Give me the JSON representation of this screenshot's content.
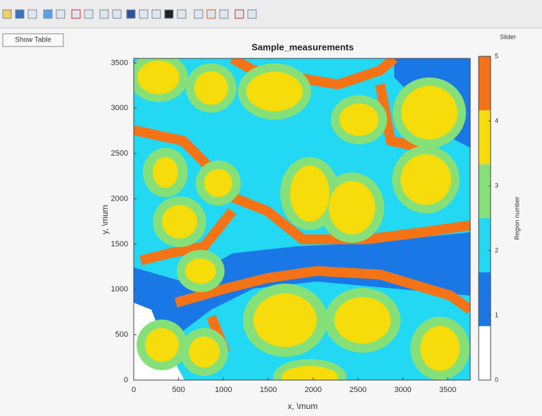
{
  "button": "Show Table",
  "slider_label": "Slider",
  "chart_data": {
    "type": "heatmap",
    "title": "Sample_measurements",
    "x_label": "x, \\mum",
    "y_label": "y, \\mum",
    "xlim": [
      0,
      3750
    ],
    "ylim": [
      0,
      3550
    ],
    "xticks": [
      0,
      500,
      1000,
      1500,
      2000,
      2500,
      3000,
      3500
    ],
    "yticks": [
      0,
      500,
      1000,
      1500,
      2000,
      2500,
      3000,
      3500
    ],
    "colorbar": {
      "label": "Region number",
      "lim": [
        0,
        5
      ],
      "ticks": [
        0,
        1,
        2,
        3,
        4,
        5
      ],
      "colors": [
        "#ffffff",
        "#1a78e6",
        "#22d8f2",
        "#86e07a",
        "#f5dc0a",
        "#f47316"
      ]
    }
  }
}
